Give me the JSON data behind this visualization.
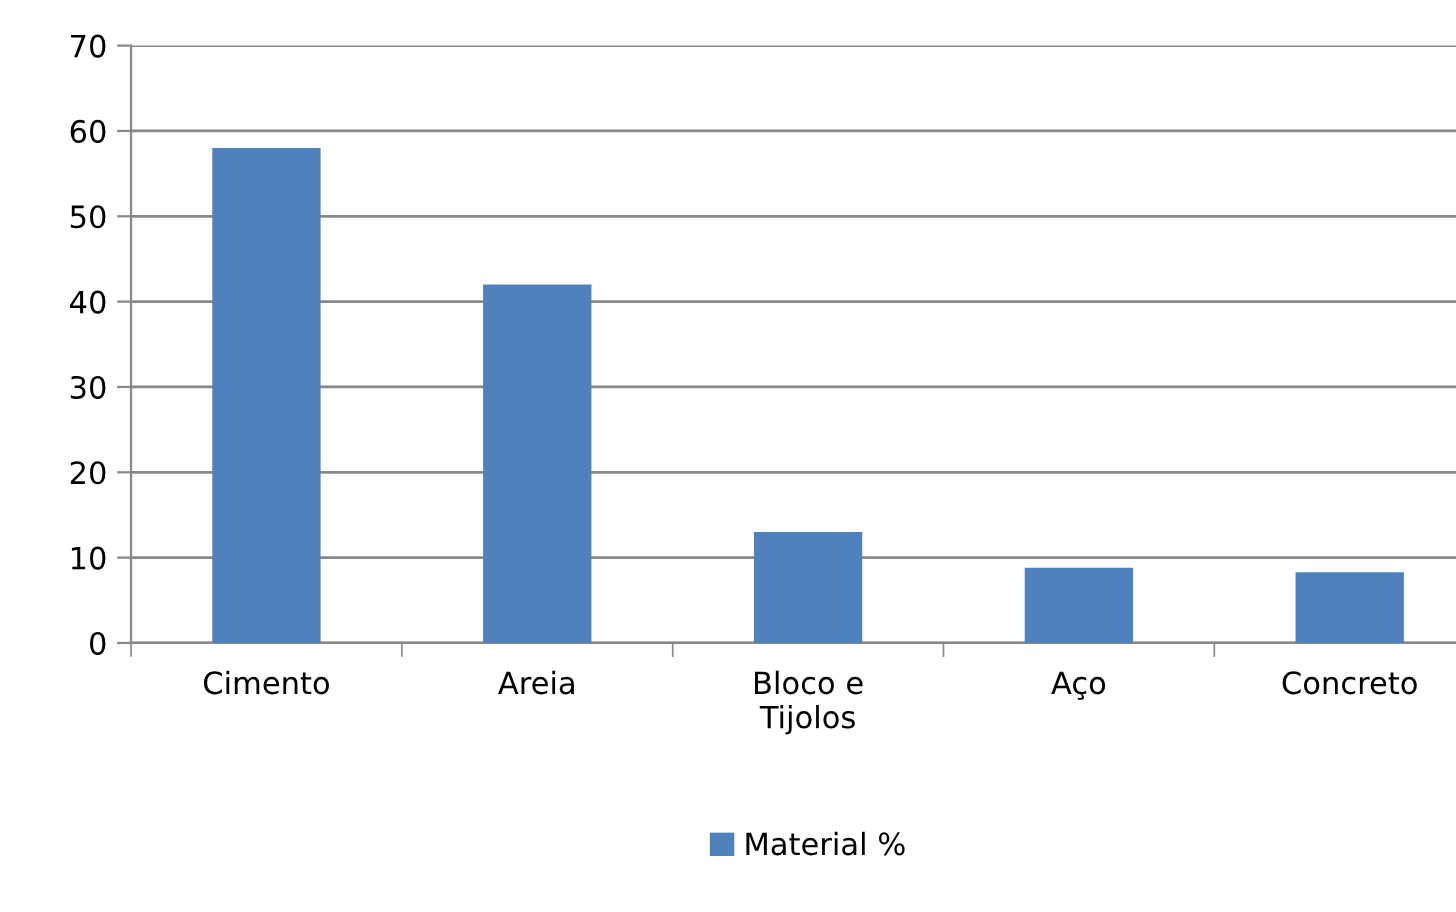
{
  "chart_data": {
    "type": "bar",
    "categories": [
      "Cimento",
      "Areia",
      "Bloco e\nTijolos",
      "Aço",
      "Concreto"
    ],
    "series": [
      {
        "name": "Material %",
        "color": "#4f81bd",
        "values": [
          58,
          42,
          13,
          8.8,
          8.3
        ]
      }
    ],
    "ylim": [
      0,
      70
    ],
    "yticks": [
      0,
      10,
      20,
      30,
      40,
      50,
      60,
      70
    ],
    "grid": "y",
    "legend": "bottom"
  }
}
